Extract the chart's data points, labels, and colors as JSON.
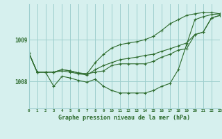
{
  "title": "Graphe pression niveau de la mer (hPa)",
  "background_color": "#d6f0ee",
  "grid_color": "#9ecece",
  "line_color": "#2d6b2d",
  "xlim": [
    0,
    23
  ],
  "ylim": [
    1007.35,
    1009.85
  ],
  "ytick_values": [
    1008.0,
    1009.0
  ],
  "series": [
    [
      1008.68,
      1008.22,
      1008.22,
      1008.22,
      1008.25,
      1008.22,
      1008.18,
      1008.15,
      1008.28,
      1008.38,
      1008.45,
      1008.52,
      1008.55,
      1008.58,
      1008.62,
      1008.65,
      1008.72,
      1008.78,
      1008.85,
      1008.92,
      1009.12,
      1009.18,
      1009.52,
      1009.58
    ],
    [
      1008.68,
      1008.22,
      1008.22,
      1007.88,
      1008.12,
      1008.08,
      1008.02,
      1007.98,
      1008.05,
      1007.88,
      1007.78,
      1007.72,
      1007.72,
      1007.72,
      1007.72,
      1007.78,
      1007.88,
      1007.95,
      1008.28,
      1008.88,
      1009.48,
      1009.55,
      1009.6,
      1009.62
    ],
    [
      1008.68,
      1008.22,
      1008.22,
      1008.22,
      1008.28,
      1008.25,
      1008.2,
      1008.18,
      1008.45,
      1008.65,
      1008.8,
      1008.88,
      1008.92,
      1008.95,
      1009.0,
      1009.08,
      1009.22,
      1009.38,
      1009.48,
      1009.58,
      1009.62,
      1009.65,
      1009.65,
      1009.62
    ],
    [
      1008.68,
      1008.22,
      1008.22,
      1008.22,
      1008.28,
      1008.25,
      1008.2,
      1008.18,
      1008.22,
      1008.25,
      1008.38,
      1008.42,
      1008.42,
      1008.42,
      1008.42,
      1008.48,
      1008.58,
      1008.65,
      1008.75,
      1008.78,
      1009.12,
      1009.18,
      1009.52,
      1009.58
    ]
  ]
}
